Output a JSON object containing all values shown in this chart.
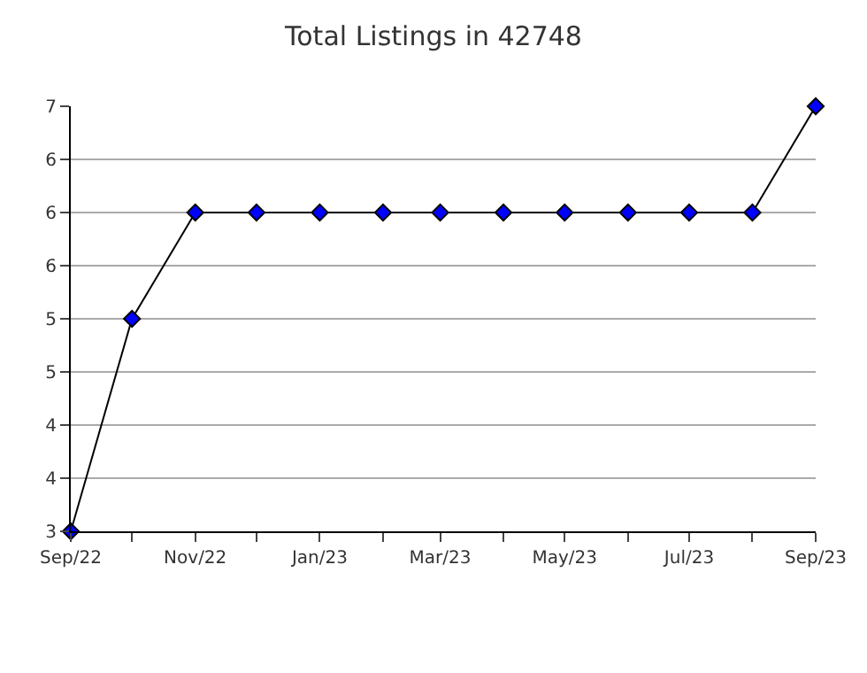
{
  "chart_data": {
    "type": "line",
    "title": "Total Listings in 42748",
    "x": [
      "2022-09",
      "2022-10",
      "2022-11",
      "2022-12",
      "2023-01",
      "2023-02",
      "2023-03",
      "2023-04",
      "2023-05",
      "2023-06",
      "2023-07",
      "2023-08",
      "2023-09"
    ],
    "series": [
      {
        "color": "#0000ff",
        "values": [
          3,
          5,
          6,
          6,
          6,
          6,
          6,
          6,
          6,
          6,
          6,
          6,
          7
        ]
      }
    ],
    "xlim": [
      "2022-09",
      "2023-09"
    ],
    "xticks": [
      {
        "value": "2022-09",
        "label": "Sep/22"
      },
      {
        "value": "2022-10",
        "label": null
      },
      {
        "value": "2022-11",
        "label": "Nov/22"
      },
      {
        "value": "2022-12",
        "label": null
      },
      {
        "value": "2023-01",
        "label": "Jan/23"
      },
      {
        "value": "2023-02",
        "label": null
      },
      {
        "value": "2023-03",
        "label": "Mar/23"
      },
      {
        "value": "2023-04",
        "label": null
      },
      {
        "value": "2023-05",
        "label": "May/23"
      },
      {
        "value": "2023-06",
        "label": null
      },
      {
        "value": "2023-07",
        "label": "Jul/23"
      },
      {
        "value": "2023-08",
        "label": null
      },
      {
        "value": "2023-09",
        "label": "Sep/23"
      }
    ],
    "ylim": [
      3,
      7
    ],
    "yticks": [
      3,
      {
        "value": 3.5,
        "label": "4"
      },
      4,
      {
        "value": 4.5,
        "label": "5"
      },
      5,
      {
        "value": 5.5,
        "label": "6"
      },
      6,
      {
        "value": 6.5,
        "label": "6"
      },
      7
    ],
    "grid": "y",
    "marker": "diamond",
    "line_style": "solid"
  }
}
